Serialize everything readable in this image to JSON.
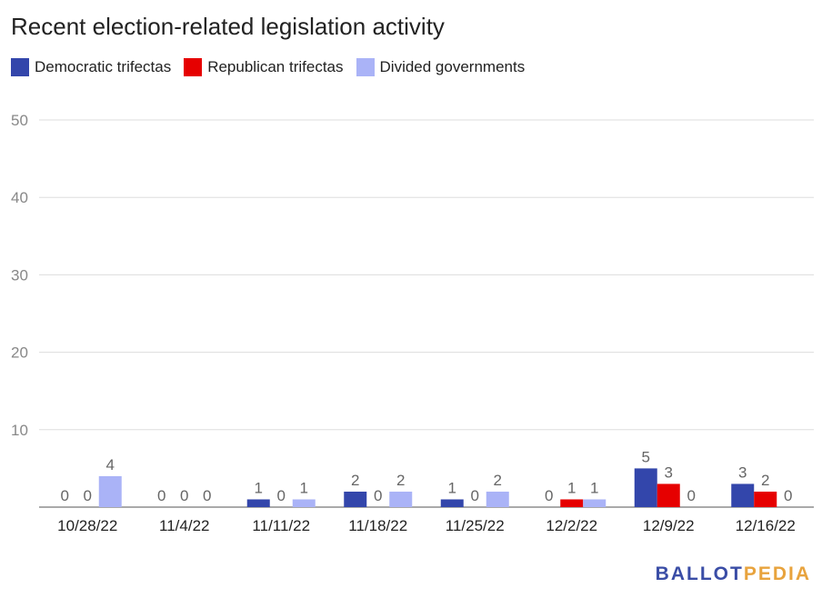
{
  "chart_data": {
    "type": "bar",
    "title": "Recent election-related legislation activity",
    "categories": [
      "10/28/22",
      "11/4/22",
      "11/11/22",
      "11/18/22",
      "11/25/22",
      "12/2/22",
      "12/9/22",
      "12/16/22"
    ],
    "series": [
      {
        "name": "Democratic trifectas",
        "color": "#3346ab",
        "values": [
          0,
          0,
          1,
          2,
          1,
          0,
          5,
          3
        ]
      },
      {
        "name": "Republican trifectas",
        "color": "#e60000",
        "values": [
          0,
          0,
          0,
          0,
          0,
          1,
          3,
          2
        ]
      },
      {
        "name": "Divided governments",
        "color": "#aab3f7",
        "values": [
          4,
          0,
          1,
          2,
          2,
          1,
          0,
          0
        ]
      }
    ],
    "yticks": [
      "10",
      "20",
      "30",
      "40",
      "50"
    ],
    "ylim": [
      0,
      50
    ],
    "grid": true,
    "legend": "top-left",
    "xlabel": "",
    "ylabel": ""
  },
  "branding": {
    "part1": "BALLOT",
    "part2": "PEDIA"
  }
}
